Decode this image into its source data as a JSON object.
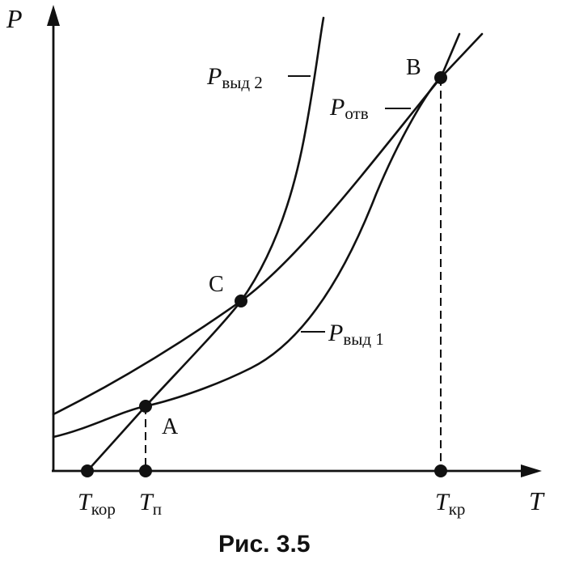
{
  "axes": {
    "y_label": "P",
    "x_label": "T"
  },
  "points": {
    "A": "A",
    "B": "B",
    "C": "C"
  },
  "curves": {
    "p_vyd_2": {
      "main": "P",
      "sub": "выд 2"
    },
    "p_otv": {
      "main": "P",
      "sub": "отв"
    },
    "p_vyd_1": {
      "main": "P",
      "sub": "выд 1"
    }
  },
  "ticks": {
    "t_kor": {
      "main": "T",
      "sub": "кор"
    },
    "t_p": {
      "main": "T",
      "sub": "п"
    },
    "t_kr": {
      "main": "T",
      "sub": "кр"
    }
  },
  "caption": "Рис. 3.5",
  "colors": {
    "ink": "#111111",
    "background": "#ffffff"
  }
}
